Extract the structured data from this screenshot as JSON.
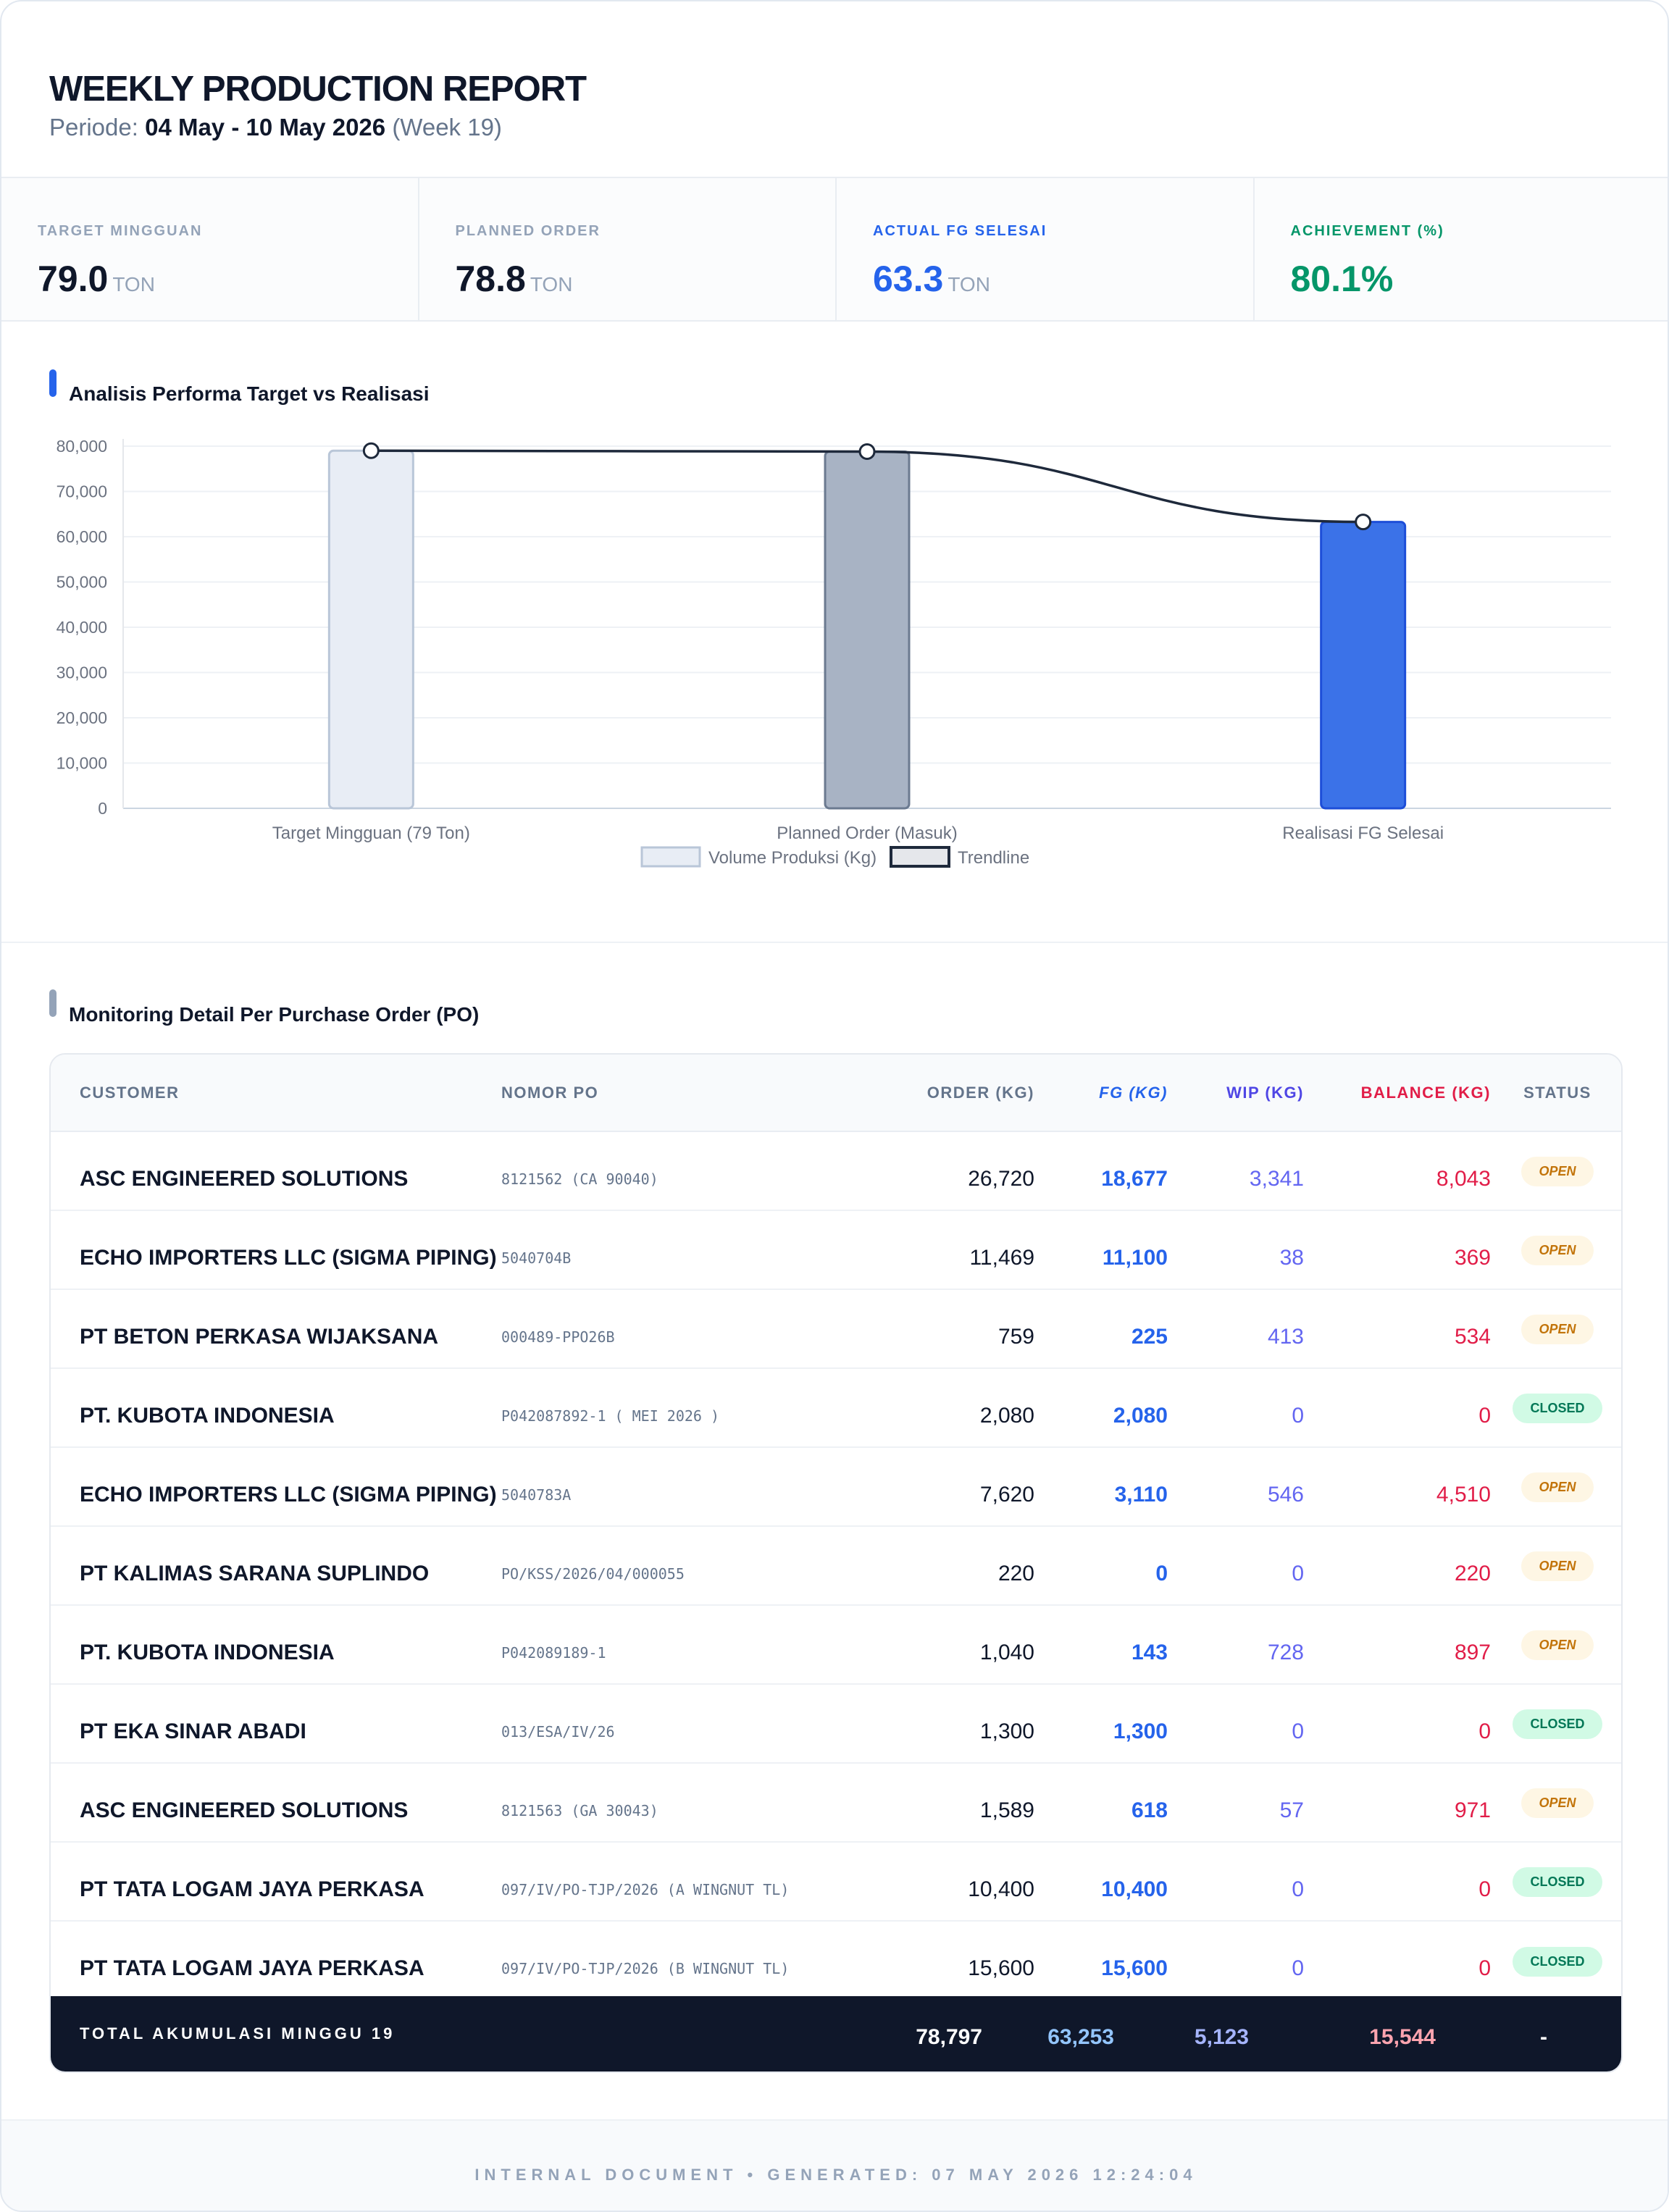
{
  "header": {
    "title": "WEEKLY PRODUCTION REPORT",
    "period_prefix": "Periode:",
    "period_range": "04 May - 10 May 2026",
    "period_week": "(Week 19)"
  },
  "kpis": [
    {
      "label": "TARGET MINGGUAN",
      "value": "79.0",
      "unit": "TON"
    },
    {
      "label": "PLANNED ORDER",
      "value": "78.8",
      "unit": "TON"
    },
    {
      "label": "ACTUAL FG SELESAI",
      "value": "63.3",
      "unit": "TON"
    },
    {
      "label": "ACHIEVEMENT (%)",
      "value": "80.1%",
      "unit": ""
    }
  ],
  "chart_section": {
    "title": "Analisis Performa Target vs Realisasi",
    "accent": "#2563eb"
  },
  "chart_data": {
    "type": "bar",
    "categories": [
      "Target Mingguan (79 Ton)",
      "Planned Order (Masuk)",
      "Realisasi FG Selesai"
    ],
    "series": [
      {
        "name": "Volume Produksi (Kg)",
        "type": "bar",
        "values": [
          79000,
          78797,
          63253
        ],
        "colors": [
          "#e8edf5",
          "#a8b3c4",
          "#3b72e8"
        ],
        "borders": [
          "#b9c6d8",
          "#6b7a90",
          "#1d4ed8"
        ]
      },
      {
        "name": "Trendline",
        "type": "line",
        "values": [
          79000,
          78797,
          63253
        ],
        "color": "#1e293b"
      }
    ],
    "ylim": [
      0,
      80000
    ],
    "yticks": [
      "0",
      "10,000",
      "20,000",
      "30,000",
      "40,000",
      "50,000",
      "60,000",
      "70,000",
      "80,000"
    ],
    "ytick_values": [
      0,
      10000,
      20000,
      30000,
      40000,
      50000,
      60000,
      70000,
      80000
    ],
    "grid": true,
    "legend": "bottom"
  },
  "table_section": {
    "title": "Monitoring Detail Per Purchase Order (PO)",
    "accent": "#94a3b8"
  },
  "table": {
    "headers": {
      "customer": "CUSTOMER",
      "po": "NOMOR PO",
      "order": "ORDER (KG)",
      "fg": "FG (KG)",
      "wip": "WIP (KG)",
      "balance": "BALANCE (KG)",
      "status": "STATUS"
    },
    "rows": [
      {
        "customer": "ASC ENGINEERED SOLUTIONS",
        "po": "8121562 (CA 90040)",
        "order": "26,720",
        "fg": "18,677",
        "wip": "3,341",
        "balance": "8,043",
        "status": "OPEN"
      },
      {
        "customer": "ECHO IMPORTERS LLC (SIGMA PIPING)",
        "po": "5040704B",
        "order": "11,469",
        "fg": "11,100",
        "wip": "38",
        "balance": "369",
        "status": "OPEN"
      },
      {
        "customer": "PT BETON PERKASA WIJAKSANA",
        "po": "000489-PPO26B",
        "order": "759",
        "fg": "225",
        "wip": "413",
        "balance": "534",
        "status": "OPEN"
      },
      {
        "customer": "PT. KUBOTA INDONESIA",
        "po": "P042087892-1 ( MEI 2026 )",
        "order": "2,080",
        "fg": "2,080",
        "wip": "0",
        "balance": "0",
        "status": "CLOSED"
      },
      {
        "customer": "ECHO IMPORTERS LLC (SIGMA PIPING)",
        "po": "5040783A",
        "order": "7,620",
        "fg": "3,110",
        "wip": "546",
        "balance": "4,510",
        "status": "OPEN"
      },
      {
        "customer": "PT KALIMAS SARANA SUPLINDO",
        "po": "PO/KSS/2026/04/000055",
        "order": "220",
        "fg": "0",
        "wip": "0",
        "balance": "220",
        "status": "OPEN"
      },
      {
        "customer": "PT. KUBOTA INDONESIA",
        "po": "P042089189-1",
        "order": "1,040",
        "fg": "143",
        "wip": "728",
        "balance": "897",
        "status": "OPEN"
      },
      {
        "customer": "PT EKA SINAR ABADI",
        "po": "013/ESA/IV/26",
        "order": "1,300",
        "fg": "1,300",
        "wip": "0",
        "balance": "0",
        "status": "CLOSED"
      },
      {
        "customer": "ASC ENGINEERED SOLUTIONS",
        "po": "8121563 (GA 30043)",
        "order": "1,589",
        "fg": "618",
        "wip": "57",
        "balance": "971",
        "status": "OPEN"
      },
      {
        "customer": "PT TATA LOGAM JAYA PERKASA",
        "po": "097/IV/PO-TJP/2026 (A WINGNUT TL)",
        "order": "10,400",
        "fg": "10,400",
        "wip": "0",
        "balance": "0",
        "status": "CLOSED"
      },
      {
        "customer": "PT TATA LOGAM JAYA PERKASA",
        "po": "097/IV/PO-TJP/2026 (B WINGNUT TL)",
        "order": "15,600",
        "fg": "15,600",
        "wip": "0",
        "balance": "0",
        "status": "CLOSED"
      }
    ],
    "total": {
      "label": "TOTAL AKUMULASI MINGGU 19",
      "order": "78,797",
      "fg": "63,253",
      "wip": "5,123",
      "balance": "15,544",
      "status": "-"
    }
  },
  "footer": {
    "text": "INTERNAL DOCUMENT • GENERATED: 07 MAY 2026 12:24:04"
  }
}
